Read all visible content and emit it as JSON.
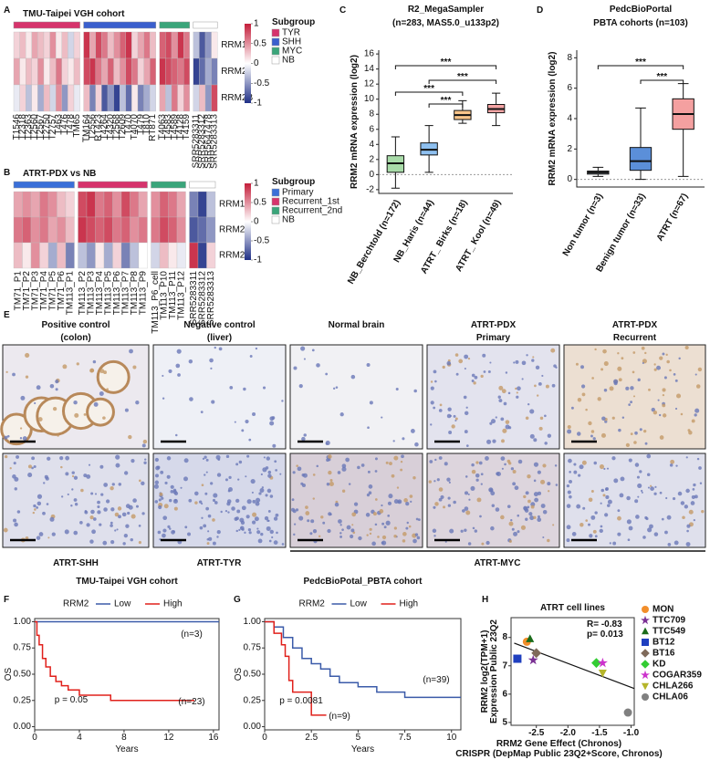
{
  "panel_labels": [
    "A",
    "B",
    "C",
    "D",
    "E",
    "F",
    "G",
    "H"
  ],
  "heatmaps": [
    {
      "title": "TMU-Taipei VGH cohort",
      "rows": [
        "RRM1",
        "RRM2",
        "RRM2B"
      ],
      "legend_title": "Subgroup",
      "colorbar_ticks": [
        1,
        0.5,
        0,
        -0.5,
        -1
      ],
      "groups": [
        {
          "name": "TYR",
          "color": "#d6336c",
          "columns": [
            "T1546",
            "T2318",
            "T2363",
            "T2560",
            "T2567",
            "T2750",
            "T2757",
            "T463",
            "T476",
            "T478",
            "TM65"
          ],
          "values": [
            [
              0.2,
              0.3,
              0.1,
              0.4,
              0.3,
              0.2,
              0.5,
              0.1,
              0.3,
              -0.2,
              0.2
            ],
            [
              0.4,
              0.1,
              0.3,
              0.2,
              0.5,
              0.1,
              0.3,
              0.6,
              0.2,
              0.1,
              0.3
            ],
            [
              -0.1,
              0.2,
              -0.3,
              0.1,
              -0.4,
              0.3,
              -0.2,
              0.5,
              -0.5,
              0.2,
              -0.1
            ]
          ]
        },
        {
          "name": "SHH",
          "color": "#3a5fcd",
          "columns": [
            "TM164",
            "T2556",
            "RT423",
            "T4264",
            "T4320",
            "T2568",
            "T2609",
            "T470",
            "T4070",
            "T479",
            "T810",
            "RT871"
          ],
          "values": [
            [
              0.9,
              0.4,
              0.8,
              0.6,
              0.3,
              0.5,
              0.7,
              0.9,
              0.2,
              0.4,
              0.6,
              0.3
            ],
            [
              0.8,
              0.9,
              0.6,
              0.4,
              0.7,
              0.3,
              0.5,
              0.8,
              0.6,
              0.2,
              0.4,
              0.7
            ],
            [
              0.3,
              -0.6,
              0.2,
              -0.8,
              -0.5,
              -0.9,
              -0.3,
              -0.7,
              0.1,
              -0.6,
              -0.4,
              -0.2
            ]
          ]
        },
        {
          "name": "MYC",
          "color": "#3aa57a",
          "columns": [
            "T4063",
            "T4583",
            "T4589",
            "T4128",
            "T4159"
          ],
          "values": [
            [
              0.7,
              0.8,
              0.5,
              0.9,
              0.6
            ],
            [
              0.9,
              0.8,
              0.7,
              0.6,
              0.8
            ],
            [
              0.4,
              -0.3,
              0.6,
              0.2,
              0.5
            ]
          ]
        },
        {
          "name": "NB",
          "color": "#ffffff",
          "columns": [
            "SRR5283311",
            "SRR5283312",
            "SRR5647478",
            "SRR5283313"
          ],
          "values": [
            [
              -0.3,
              -0.8,
              -0.5,
              0.1
            ],
            [
              -0.9,
              -0.7,
              -0.4,
              -0.6
            ],
            [
              -0.2,
              0.3,
              -0.5,
              0.8
            ]
          ]
        }
      ]
    },
    {
      "title": "ATRT-PDX vs NB",
      "rows": [
        "RRM1",
        "RRM2",
        "RRM2B"
      ],
      "legend_title": "Subgroup",
      "colorbar_ticks": [
        1,
        0.5,
        0,
        -0.5,
        -1
      ],
      "groups": [
        {
          "name": "Primary",
          "color": "#3a6fd8",
          "columns": [
            "TM71_P1",
            "TM71_P2",
            "TM71_P3",
            "TM71_P4",
            "TM71_P5",
            "TM71_P6",
            "TM113_P1"
          ],
          "values": [
            [
              0.4,
              0.5,
              0.4,
              0.6,
              0.5,
              0.3,
              0.2
            ],
            [
              0.6,
              0.7,
              0.5,
              0.6,
              0.4,
              0.5,
              0.3
            ],
            [
              0.3,
              0.1,
              0.5,
              0.2,
              -0.4,
              0.3,
              -0.6
            ]
          ]
        },
        {
          "name": "Recurrent_1st",
          "color": "#d6336c",
          "columns": [
            "TM113_P2",
            "TM113_P3",
            "TM113_P4",
            "TM113_P5",
            "TM113_P6",
            "TM113_P7",
            "TM113_P8",
            "TM113_P9"
          ],
          "values": [
            [
              0.8,
              0.9,
              0.6,
              0.7,
              0.5,
              0.8,
              0.6,
              0.4
            ],
            [
              0.9,
              0.8,
              0.7,
              0.8,
              0.6,
              0.7,
              0.5,
              0.6
            ],
            [
              -0.3,
              -0.5,
              0.1,
              -0.4,
              0.2,
              -0.6,
              -0.3,
              0.0
            ]
          ]
        },
        {
          "name": "Recurrent_2nd",
          "color": "#3aa57a",
          "columns": [
            "TM113_P6_cell",
            "TM113_P10",
            "TM113_P11",
            "TM113_P12"
          ],
          "values": [
            [
              0.5,
              0.7,
              0.6,
              0.4
            ],
            [
              0.6,
              0.8,
              0.7,
              0.5
            ],
            [
              -0.2,
              0.3,
              0.1,
              -0.1
            ]
          ]
        },
        {
          "name": "NB",
          "color": "#ffffff",
          "columns": [
            "SRR5283311",
            "SRR5283312",
            "SRR5283313"
          ],
          "values": [
            [
              -0.6,
              -0.9,
              -0.3
            ],
            [
              -0.8,
              -0.7,
              -0.5
            ],
            [
              0.9,
              -0.9,
              0.2
            ]
          ]
        }
      ]
    }
  ],
  "chart_data": [
    {
      "type": "box",
      "title": "R2_MegaSampler",
      "subtitle": "(n=283,  MAS5.0_u133p2)",
      "ylabel": "RRM2 mRNA expression (log2)",
      "categories": [
        "NB_Berchtold (n=172)",
        "NB_Haris (n=44)",
        "ATRT_ Birks (n=18)",
        "ATRT_ Kool (n=49)"
      ],
      "stats": [
        [
          -1.8,
          0.3,
          1.5,
          2.5,
          5
        ],
        [
          0.3,
          2.6,
          3.3,
          4.2,
          6.5
        ],
        [
          6.8,
          7.3,
          7.9,
          8.5,
          9.8
        ],
        [
          6.5,
          8.2,
          8.7,
          9.3,
          10.8
        ]
      ],
      "colors": [
        "#a8dba8",
        "#8ec0f0",
        "#f9c58a",
        "#f4a3a3"
      ],
      "ylim": [
        -2.5,
        16.5
      ],
      "yticks": [
        -2,
        0,
        2,
        4,
        6,
        8,
        10,
        12,
        14,
        16
      ],
      "hline": 0,
      "annotations": [
        "***",
        "***",
        "***",
        "***"
      ]
    },
    {
      "type": "box",
      "title": "PedcBioPortal",
      "subtitle": "PBTA cohorts (n=103)",
      "ylabel": "RRM2 mRNA expression (log2)",
      "categories": [
        "Non tumor (n=3)",
        "Benign tumor (n=33)",
        "ATRT (n=67)"
      ],
      "stats": [
        [
          0.2,
          0.35,
          0.45,
          0.55,
          0.8
        ],
        [
          0,
          0.6,
          1.2,
          2.1,
          4.7
        ],
        [
          0.2,
          3.3,
          4.3,
          5.3,
          6.3
        ]
      ],
      "colors": [
        "#c7d7ea",
        "#5b8fd9",
        "#f4a0a0"
      ],
      "ylim": [
        -0.5,
        8.5
      ],
      "yticks": [
        0,
        2,
        4,
        6,
        8
      ],
      "hline": 0,
      "annotations": [
        "***",
        "***"
      ]
    },
    {
      "type": "km",
      "title": "TMU-Taipei VGH cohort",
      "legend_title": "RRM2",
      "xlabel": "Years",
      "ylabel": "OS",
      "series": [
        {
          "name": "Low",
          "color": "#3b5ba9",
          "x": [
            0,
            16.5
          ],
          "y": [
            1,
            1
          ]
        },
        {
          "name": "High",
          "color": "#e0201b",
          "x": [
            0,
            0.2,
            0.2,
            0.4,
            0.4,
            0.7,
            0.7,
            1.0,
            1.0,
            1.4,
            1.4,
            1.9,
            1.9,
            2.4,
            2.4,
            3.0,
            3.0,
            4.0,
            4.0,
            6.8,
            6.8,
            14.3
          ],
          "y": [
            1,
            1,
            0.87,
            0.87,
            0.78,
            0.78,
            0.65,
            0.65,
            0.57,
            0.57,
            0.48,
            0.48,
            0.43,
            0.43,
            0.39,
            0.39,
            0.35,
            0.35,
            0.3,
            0.3,
            0.25,
            0.25
          ]
        }
      ],
      "xlim": [
        0,
        16.5
      ],
      "ylim": [
        -0.03,
        1.03
      ],
      "xticks": [
        0,
        4,
        8,
        12,
        16
      ],
      "yticks": [
        {
          "value": 0,
          "label": "0.00"
        },
        {
          "value": 0.25,
          "label": "0.25"
        },
        {
          "value": 0.5,
          "label": "0.50"
        },
        {
          "value": 0.75,
          "label": "0.75"
        },
        {
          "value": 1,
          "label": "1.00"
        }
      ],
      "annotations": [
        "(n=3)",
        "(n=23)",
        "p = 0.05"
      ]
    },
    {
      "type": "km",
      "title": "PedcBioPotal_PBTA cohort",
      "legend_title": "RRM2",
      "xlabel": "Years",
      "ylabel": "OS",
      "series": [
        {
          "name": "Low",
          "color": "#3b5ba9",
          "x": [
            0,
            0.5,
            0.5,
            1,
            1,
            1.5,
            1.5,
            2,
            2,
            2.5,
            2.5,
            3,
            3,
            3.5,
            3.5,
            4,
            4,
            5,
            5,
            6,
            6,
            7.5,
            7.5,
            10.5
          ],
          "y": [
            1,
            1,
            0.95,
            0.95,
            0.85,
            0.85,
            0.75,
            0.75,
            0.65,
            0.65,
            0.6,
            0.6,
            0.55,
            0.55,
            0.48,
            0.48,
            0.42,
            0.42,
            0.38,
            0.38,
            0.33,
            0.33,
            0.28,
            0.28
          ]
        },
        {
          "name": "High",
          "color": "#e0201b",
          "x": [
            0,
            0.5,
            0.5,
            0.9,
            0.9,
            1.1,
            1.1,
            1.3,
            1.3,
            1.5,
            1.5,
            2.5,
            2.5,
            3.3
          ],
          "y": [
            1,
            1,
            0.89,
            0.89,
            0.78,
            0.78,
            0.67,
            0.67,
            0.44,
            0.44,
            0.33,
            0.33,
            0.11,
            0.11
          ]
        }
      ],
      "xlim": [
        0,
        10.5
      ],
      "ylim": [
        -0.03,
        1.03
      ],
      "xticks": [
        0,
        2.5,
        5,
        7.5,
        10
      ],
      "yticks": [
        {
          "value": 0,
          "label": "0.00"
        },
        {
          "value": 0.25,
          "label": "0.25"
        },
        {
          "value": 0.5,
          "label": "0.50"
        },
        {
          "value": 0.75,
          "label": "0.75"
        },
        {
          "value": 1,
          "label": "1.00"
        }
      ],
      "annotations": [
        "(n=39)",
        "p = 0.0081",
        "(n=9)"
      ]
    },
    {
      "type": "scatter",
      "title": "ATRT cell lines",
      "xlabel": [
        "RRM2 Gene Effect (Chronos)",
        "CRISPR (DepMap Public 23Q2+Score, Chronos)"
      ],
      "ylabel": [
        "RRM2 log2(TPM+1)",
        "Expression Public 23Q2"
      ],
      "xlim": [
        -2.9,
        -0.95
      ],
      "ylim": [
        4.9,
        8.7
      ],
      "xticks": [
        -2.5,
        {
          "value": -2,
          "label": "-2.0"
        },
        -1.5,
        {
          "value": -1,
          "label": "-1.0"
        }
      ],
      "yticks": [
        5,
        6,
        7,
        8
      ],
      "annotations": [
        "R= -0.83",
        "p= 0.013"
      ],
      "trendline": {
        "x": [
          -2.85,
          -0.95
        ],
        "y": [
          7.8,
          6.2
        ]
      },
      "series": [
        {
          "name": "MON",
          "color": "#f28e2b",
          "marker": "circle",
          "x": [
            -2.65
          ],
          "y": [
            7.85
          ]
        },
        {
          "name": "TTC709",
          "color": "#7b3294",
          "marker": "star",
          "x": [
            -2.55
          ],
          "y": [
            7.2
          ]
        },
        {
          "name": "TTC549",
          "color": "#1a6b1a",
          "marker": "triangle",
          "x": [
            -2.6
          ],
          "y": [
            7.95
          ]
        },
        {
          "name": "BT12",
          "color": "#1f3fbf",
          "marker": "square",
          "x": [
            -2.8
          ],
          "y": [
            7.25
          ]
        },
        {
          "name": "BT16",
          "color": "#7f6a5a",
          "marker": "diamond",
          "x": [
            -2.5
          ],
          "y": [
            7.45
          ]
        },
        {
          "name": "KD",
          "color": "#33cc33",
          "marker": "diamond",
          "x": [
            -1.55
          ],
          "y": [
            7.1
          ]
        },
        {
          "name": "COGAR359",
          "color": "#cc33cc",
          "marker": "star",
          "x": [
            -1.45
          ],
          "y": [
            7.1
          ]
        },
        {
          "name": "CHLA266",
          "color": "#b5b52a",
          "marker": "triangle-down",
          "x": [
            -1.45
          ],
          "y": [
            6.75
          ]
        },
        {
          "name": "CHLA06",
          "color": "#808080",
          "marker": "circle",
          "x": [
            -1.05
          ],
          "y": [
            5.35
          ]
        }
      ]
    }
  ],
  "ihc": {
    "top_labels": [
      [
        "Positive control",
        "(colon)"
      ],
      [
        "Negative control",
        "(liver)"
      ],
      [
        "Normal brain"
      ],
      [
        "ATRT-PDX",
        "Primary"
      ],
      [
        "ATRT-PDX",
        "Recurrent"
      ]
    ],
    "bottom_labels": [
      "ATRT-SHH",
      "ATRT-TYR",
      "ATRT-MYC"
    ]
  }
}
